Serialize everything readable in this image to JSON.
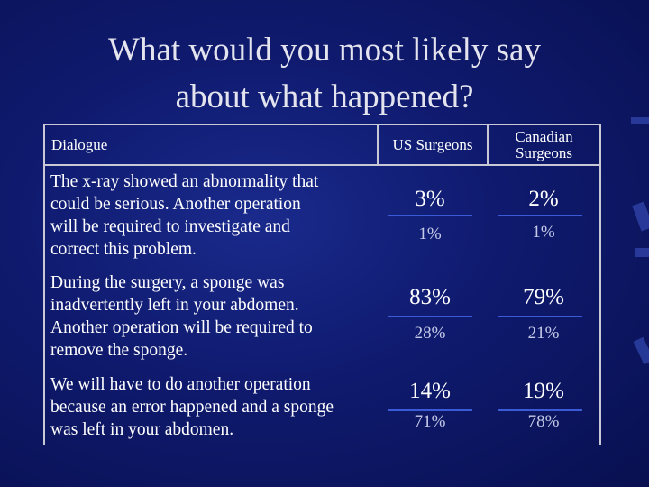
{
  "slide": {
    "title_line1": "What would you most likely say",
    "title_line2": "about what happened?"
  },
  "table": {
    "headers": {
      "dialogue": "Dialogue",
      "us": "US Surgeons",
      "canadian_line1": "Canadian",
      "canadian_line2": "Surgeons"
    },
    "rows": [
      {
        "text_lines": [
          "The x-ray showed an abnormality that",
          "could be serious.  Another operation",
          "will be required to investigate and",
          "correct this problem."
        ],
        "us_top": "3%",
        "us_bottom": "1%",
        "ca_top": "2%",
        "ca_bottom": "1%"
      },
      {
        "text_lines": [
          "During the surgery, a sponge was",
          "inadvertently left in your abdomen.",
          "Another operation will be required to",
          "remove the sponge."
        ],
        "us_top": "83%",
        "us_bottom": "28%",
        "ca_top": "79%",
        "ca_bottom": "21%"
      },
      {
        "text_lines": [
          "We will have to do another operation",
          "because an error happened and a sponge",
          "was left in your abdomen."
        ],
        "us_top": "14%",
        "us_bottom": "71%",
        "ca_top": "19%",
        "ca_bottom": "78%"
      }
    ]
  },
  "colors": {
    "background": "#0f1a6e",
    "rule": "#3a5ad6",
    "grid": "#c9c9d6"
  }
}
